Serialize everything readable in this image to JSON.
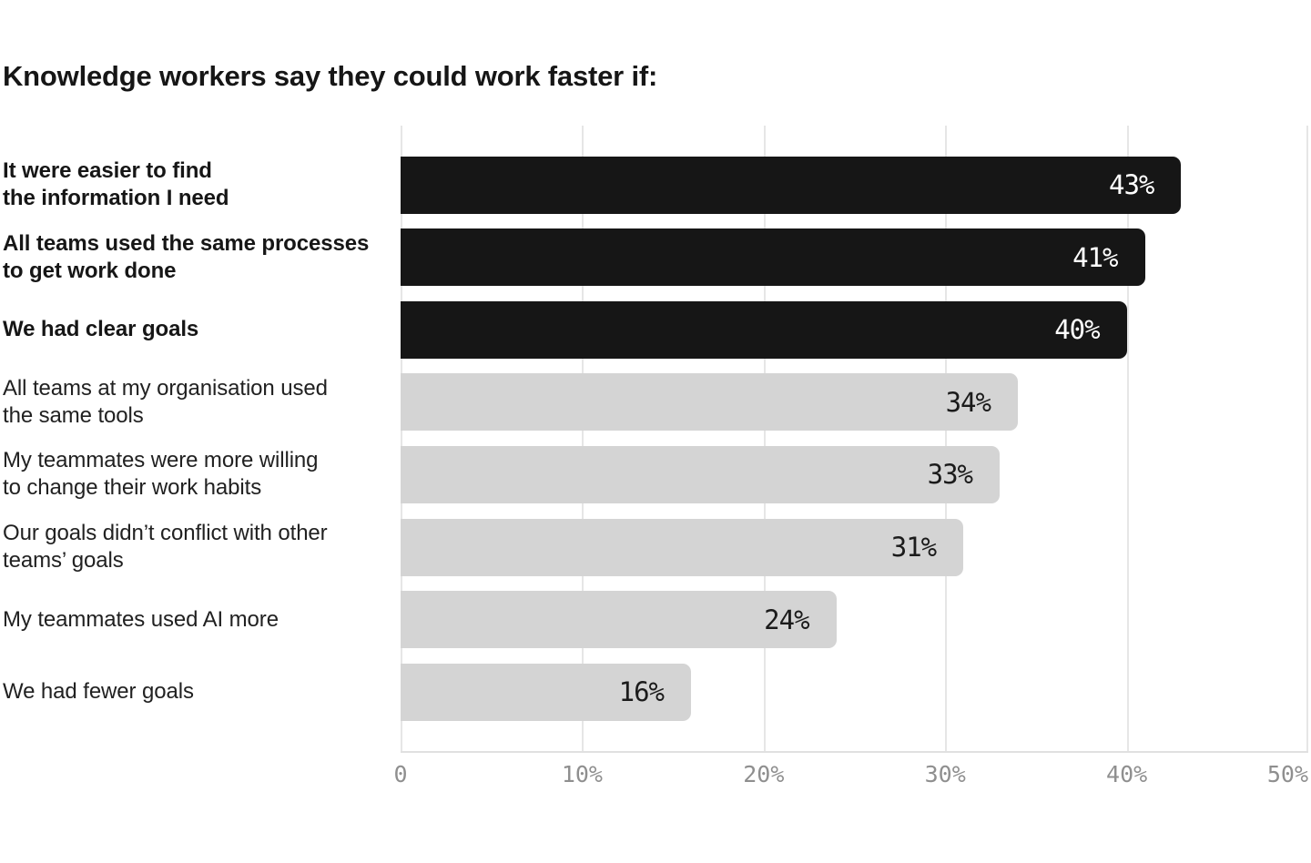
{
  "title": "Knowledge workers say they could work faster if:",
  "chart_data": {
    "type": "bar",
    "orientation": "horizontal",
    "title": "Knowledge workers say they could work faster if:",
    "categories": [
      "It were easier to find the information I need",
      "All teams used the same processes to get work done",
      "We had clear goals",
      "All teams at my organisation used the same tools",
      "My teammates were more willing to change their work habits",
      "Our goals didn’t conflict with other teams’ goals",
      "My teammates used AI more",
      "We had fewer goals"
    ],
    "category_lines": [
      [
        "It were easier to find",
        "the information I need"
      ],
      [
        "All teams used the same processes",
        "to get work done"
      ],
      [
        "We had clear goals"
      ],
      [
        "All teams at my organisation used",
        "the same tools"
      ],
      [
        "My teammates were more willing",
        "to change their work habits"
      ],
      [
        "Our goals didn’t conflict with other",
        "teams’ goals"
      ],
      [
        "My teammates used AI more"
      ],
      [
        "We had fewer goals"
      ]
    ],
    "values": [
      43,
      41,
      40,
      34,
      33,
      31,
      24,
      16
    ],
    "value_labels": [
      "43%",
      "41%",
      "40%",
      "34%",
      "33%",
      "31%",
      "24%",
      "16%"
    ],
    "emphasized": [
      true,
      true,
      true,
      false,
      false,
      false,
      false,
      false
    ],
    "xlabel": "",
    "ylabel": "",
    "xlim": [
      0,
      50
    ],
    "x_ticks": [
      "0",
      "10%",
      "20%",
      "30%",
      "40%",
      "50%"
    ],
    "x_tick_values": [
      0,
      10,
      20,
      30,
      40,
      50
    ],
    "grid": "vertical",
    "legend": "none",
    "colors": {
      "emphasis_bar": "#161616",
      "default_bar": "#d4d4d4",
      "emphasis_value_text": "#ffffff",
      "default_value_text": "#1b1b1b",
      "gridline": "#e6e6e6",
      "axis_line": "#e0e0e0",
      "tick_text": "#8f8f8f",
      "label_text": "#212121",
      "title_text": "#161616"
    }
  }
}
